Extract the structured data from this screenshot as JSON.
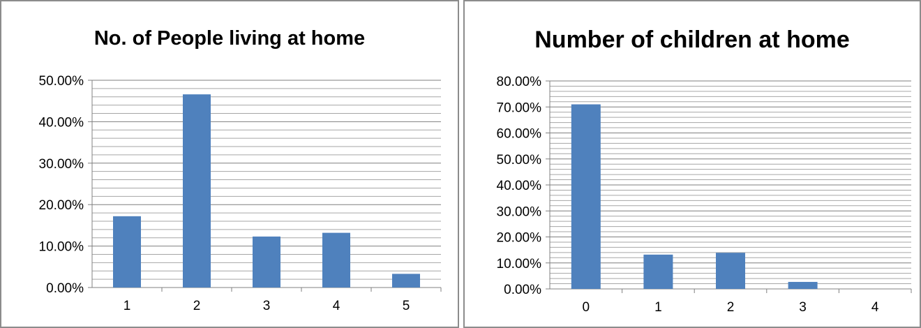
{
  "chart_data": [
    {
      "type": "bar",
      "title": "No. of People living at home",
      "xlabel": "",
      "ylabel": "",
      "categories": [
        "1",
        "2",
        "3",
        "4",
        "5"
      ],
      "values": [
        17.2,
        46.6,
        12.3,
        13.2,
        3.3
      ],
      "ylim": [
        0,
        50
      ],
      "y_ticks": [
        "0.00%",
        "10.00%",
        "20.00%",
        "30.00%",
        "40.00%",
        "50.00%"
      ],
      "y_major_step": 10,
      "y_minor_step": 2,
      "grid": true,
      "legend": "none",
      "bar_color": "#4f81bd"
    },
    {
      "type": "bar",
      "title": "Number of children at home",
      "xlabel": "",
      "ylabel": "",
      "categories": [
        "0",
        "1",
        "2",
        "3",
        "4"
      ],
      "values": [
        71.0,
        13.2,
        13.9,
        2.7,
        0
      ],
      "ylim": [
        0,
        80
      ],
      "y_ticks": [
        "0.00%",
        "10.00%",
        "20.00%",
        "30.00%",
        "40.00%",
        "50.00%",
        "60.00%",
        "70.00%",
        "80.00%"
      ],
      "y_major_step": 10,
      "y_minor_step": 2,
      "grid": true,
      "legend": "none",
      "bar_color": "#4f81bd"
    }
  ]
}
